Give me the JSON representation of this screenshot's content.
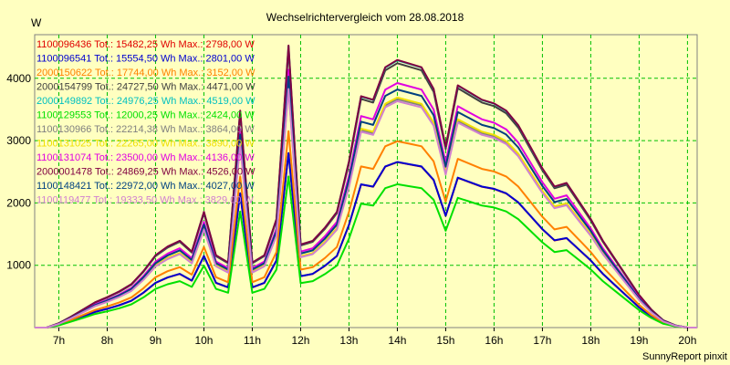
{
  "chart_data": {
    "type": "line",
    "title": "Wechselrichtervergleich vom 28.08.2018",
    "ylabel": "W",
    "xlabel": "",
    "footer": "SunnyReport pinxit",
    "xlim": [
      6.5,
      20.2
    ],
    "ylim": [
      0,
      4700
    ],
    "grid": true,
    "legend_placement": "top-left",
    "x_ticks": [
      {
        "v": 7,
        "label": "7h"
      },
      {
        "v": 8,
        "label": "8h"
      },
      {
        "v": 9,
        "label": "9h"
      },
      {
        "v": 10,
        "label": "10h"
      },
      {
        "v": 11,
        "label": "11h"
      },
      {
        "v": 12,
        "label": "12h"
      },
      {
        "v": 13,
        "label": "13h"
      },
      {
        "v": 14,
        "label": "14h"
      },
      {
        "v": 15,
        "label": "15h"
      },
      {
        "v": 16,
        "label": "16h"
      },
      {
        "v": 17,
        "label": "17h"
      },
      {
        "v": 18,
        "label": "18h"
      },
      {
        "v": 19,
        "label": "19h"
      },
      {
        "v": 20,
        "label": "20h"
      }
    ],
    "y_ticks": [
      {
        "v": 1000,
        "label": "1000"
      },
      {
        "v": 2000,
        "label": "2000"
      },
      {
        "v": 3000,
        "label": "3000"
      },
      {
        "v": 4000,
        "label": "4000"
      }
    ],
    "x": [
      6.5,
      6.75,
      7.0,
      7.25,
      7.5,
      7.75,
      8.0,
      8.25,
      8.5,
      8.75,
      9.0,
      9.25,
      9.5,
      9.75,
      10.0,
      10.25,
      10.5,
      10.75,
      11.0,
      11.25,
      11.5,
      11.75,
      12.0,
      12.25,
      12.5,
      12.75,
      13.0,
      13.25,
      13.5,
      13.75,
      14.0,
      14.25,
      14.5,
      14.75,
      15.0,
      15.25,
      15.5,
      15.75,
      16.0,
      16.25,
      16.5,
      16.75,
      17.0,
      17.25,
      17.5,
      17.75,
      18.0,
      18.25,
      18.5,
      18.75,
      19.0,
      19.25,
      19.5,
      19.75,
      20.0,
      20.2
    ],
    "base": [
      0,
      0,
      60,
      150,
      250,
      350,
      420,
      500,
      600,
      780,
      1000,
      1120,
      1200,
      1050,
      1600,
      1000,
      900,
      3000,
      900,
      1000,
      1500,
      3900,
      1150,
      1200,
      1380,
      1600,
      2300,
      3200,
      3150,
      3600,
      3700,
      3650,
      3600,
      3300,
      2500,
      3350,
      3250,
      3150,
      3100,
      3000,
      2800,
      2500,
      2200,
      1950,
      2000,
      1750,
      1500,
      1200,
      950,
      700,
      450,
      250,
      100,
      30,
      0,
      0
    ],
    "series": [
      {
        "name": "1100096436",
        "label": "1100096436 Tot.: 15482,25 Wh Max.: 2798,00 W",
        "color": "#e00000",
        "max": 2798
      },
      {
        "name": "1100096541",
        "label": "1100096541 Tot.: 15554,50 Wh Max.: 2801,00 W",
        "color": "#0000d0",
        "max": 2801
      },
      {
        "name": "2000150622",
        "label": "2000150622 Tot.: 17744,00 Wh Max.: 3152,00 W",
        "color": "#ff8000",
        "max": 3152
      },
      {
        "name": "2000154799",
        "label": "2000154799 Tot.: 24727,50 Wh Max.: 4471,00 W",
        "color": "#404040",
        "max": 4471
      },
      {
        "name": "2000149892",
        "label": "2000149892 Tot.: 24976,25 Wh Max.: 4519,00 W",
        "color": "#00c0c0",
        "max": 4519
      },
      {
        "name": "1100129553",
        "label": "1100129553 Tot.: 12000,25 Wh Max.: 2424,00 W",
        "color": "#00e000",
        "max": 2424
      },
      {
        "name": "1100130966",
        "label": "1100130966 Tot.: 22214,38 Wh Max.: 3864,00 W",
        "color": "#808080",
        "max": 3864
      },
      {
        "name": "1100131025",
        "label": "1100131025 Tot.: 22265,00 Wh Max.: 3890,00 W",
        "color": "#f0e000",
        "max": 3890
      },
      {
        "name": "1100131074",
        "label": "1100131074 Tot.: 23500,00 Wh Max.: 4136,00 W",
        "color": "#e000e0",
        "max": 4136
      },
      {
        "name": "2000001478",
        "label": "2000001478 Tot.: 24869,25 Wh Max.: 4526,00 W",
        "color": "#800040",
        "max": 4526
      },
      {
        "name": "1100148421",
        "label": "1100148421 Tot.: 22972,00 Wh Max.: 4027,00 W",
        "color": "#004080",
        "max": 4027
      },
      {
        "name": "1100119477",
        "label": "1100119477 Tot.: 19333,50 Wh Max.: 3829,00 W",
        "color": "#d080d0",
        "max": 3829
      }
    ]
  }
}
